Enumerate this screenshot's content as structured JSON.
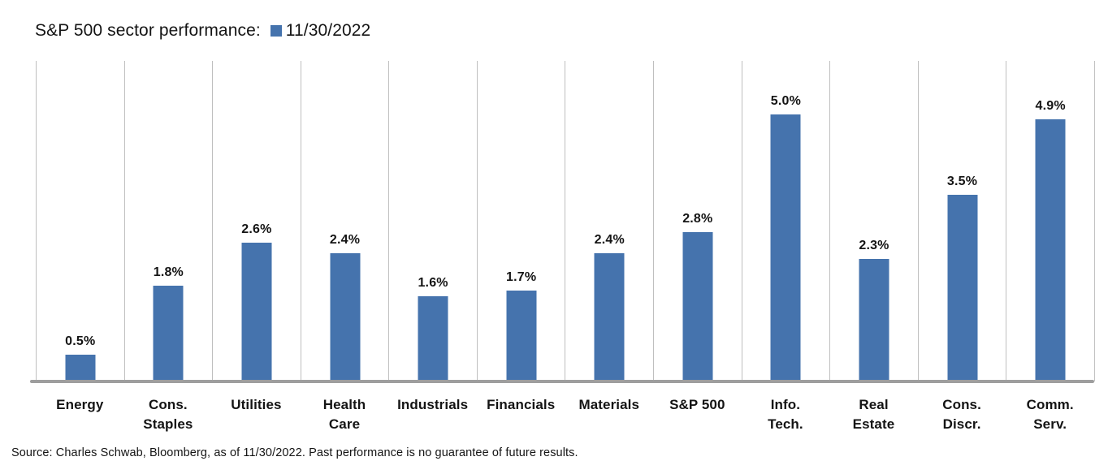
{
  "header": {
    "title": "S&P 500 sector performance:",
    "legend_label": "11/30/2022"
  },
  "footer": {
    "source": "Source: Charles Schwab, Bloomberg, as of 11/30/2022.  Past performance is no guarantee of future results."
  },
  "colors": {
    "bar": "#4573AD",
    "gridline": "#BFBFBF",
    "baseline": "#9E9E9E",
    "text": "#141414"
  },
  "chart_data": {
    "type": "bar",
    "title": "S&P 500 sector performance: 11/30/2022",
    "categories": [
      "Energy",
      "Cons. Staples",
      "Utilities",
      "Health Care",
      "Industrials",
      "Financials",
      "Materials",
      "S&P 500",
      "Info. Tech.",
      "Real Estate",
      "Cons. Discr.",
      "Comm. Serv."
    ],
    "category_label_lines": [
      [
        "Energy"
      ],
      [
        "Cons.",
        "Staples"
      ],
      [
        "Utilities"
      ],
      [
        "Health",
        "Care"
      ],
      [
        "Industrials"
      ],
      [
        "Financials"
      ],
      [
        "Materials"
      ],
      [
        "S&P 500"
      ],
      [
        "Info.",
        "Tech."
      ],
      [
        "Real",
        "Estate"
      ],
      [
        "Cons.",
        "Discr."
      ],
      [
        "Comm.",
        "Serv."
      ]
    ],
    "series": [
      {
        "name": "11/30/2022",
        "values": [
          0.5,
          1.8,
          2.6,
          2.4,
          1.6,
          1.7,
          2.4,
          2.8,
          5.0,
          2.3,
          3.5,
          4.9
        ],
        "data_labels": [
          "0.5%",
          "1.8%",
          "2.6%",
          "2.4%",
          "1.6%",
          "1.7%",
          "2.4%",
          "2.8%",
          "5.0%",
          "2.3%",
          "3.5%",
          "4.9%"
        ],
        "color": "#4573AD"
      }
    ],
    "xlabel": "",
    "ylabel": "",
    "ylim": [
      0,
      6
    ],
    "grid": "vertical category separators only, no horizontal gridlines, no y-axis ticks",
    "legend_position": "top inline with title",
    "data_labels_position": "above bars, bold"
  }
}
